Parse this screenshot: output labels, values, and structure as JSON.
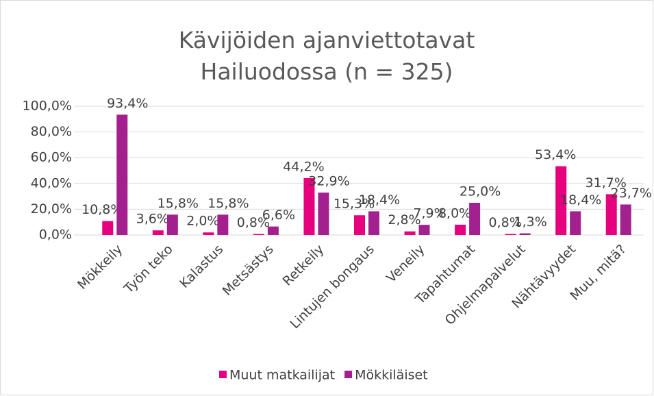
{
  "chart_data": {
    "type": "bar",
    "title": "Kävijöiden ajanviettotavat Hailuodossa (n = 325)",
    "categories": [
      "Mökkeily",
      "Työn teko",
      "Kalastus",
      "Metsästys",
      "Retkeily",
      "Lintujen bongaus",
      "Veneily",
      "Tapahtumat",
      "Ohjelmapalvelut",
      "Nähtävyydet",
      "Muu, mitä?"
    ],
    "series": [
      {
        "name": "Muut matkailijat",
        "color": "#e6007e",
        "values": [
          10.8,
          3.6,
          2.0,
          0.8,
          44.2,
          15.3,
          2.8,
          8.0,
          0.8,
          53.4,
          31.7
        ],
        "value_labels": [
          "10,8%",
          "3,6%",
          "2,0%",
          "0,8%",
          "44,2%",
          "15,3%",
          "2,8%",
          "8,0%",
          "0,8%",
          "53,4%",
          "31,7%"
        ]
      },
      {
        "name": "Mökkiläiset",
        "color": "#a3218e",
        "values": [
          93.4,
          15.8,
          15.8,
          6.6,
          32.9,
          18.4,
          7.9,
          25.0,
          1.3,
          18.4,
          23.7
        ],
        "value_labels": [
          "93,4%",
          "15,8%",
          "15,8%",
          "6,6%",
          "32,9%",
          "18,4%",
          "7,9%",
          "25,0%",
          "1,3%",
          "18,4%",
          "23,7%"
        ]
      }
    ],
    "ylim": [
      0,
      100
    ],
    "yticks": [
      {
        "value": 0,
        "label": "0,0%"
      },
      {
        "value": 20,
        "label": "20,0%"
      },
      {
        "value": 40,
        "label": "40,0%"
      },
      {
        "value": 60,
        "label": "60,0%"
      },
      {
        "value": 80,
        "label": "80,0%"
      },
      {
        "value": 100,
        "label": "100,0%"
      }
    ],
    "grid": true,
    "legend": "bottom"
  }
}
